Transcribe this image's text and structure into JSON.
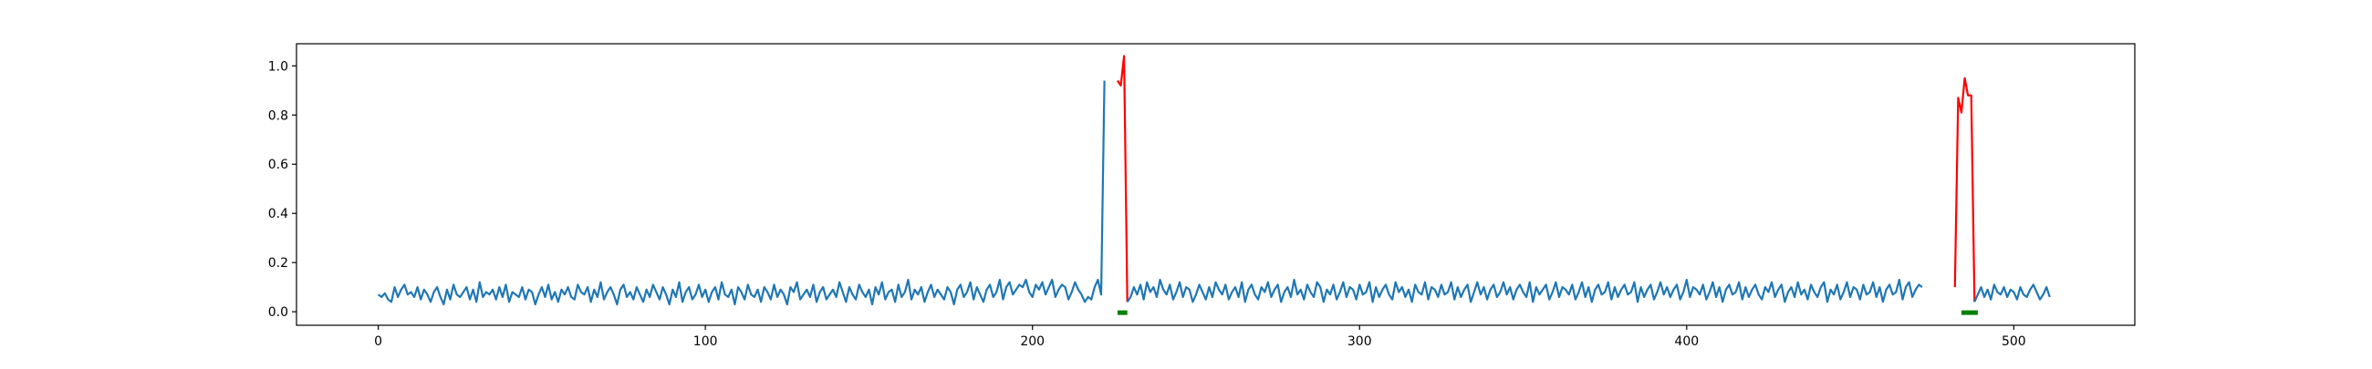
{
  "chart_data": {
    "type": "line",
    "title": "",
    "xlabel": "",
    "ylabel": "",
    "xlim": [
      -25,
      537
    ],
    "ylim": [
      -0.055,
      1.09
    ],
    "grid": false,
    "legend": "none",
    "xticks": [
      0,
      100,
      200,
      300,
      400,
      500
    ],
    "yticks": [
      0.0,
      0.2,
      0.4,
      0.6,
      0.8,
      1.0
    ],
    "xtick_labels": [
      "0",
      "100",
      "200",
      "300",
      "400",
      "500"
    ],
    "ytick_labels": [
      "0.0",
      "0.2",
      "0.4",
      "0.6",
      "0.8",
      "1.0"
    ],
    "colors": {
      "signal": "#1f77b4",
      "anomaly": "#ff0000",
      "markers": "#008000"
    },
    "series": [
      {
        "x_start": 0,
        "values": [
          0.07,
          0.06,
          0.075,
          0.05,
          0.04,
          0.1,
          0.06,
          0.09,
          0.11,
          0.07,
          0.08,
          0.06,
          0.1,
          0.05,
          0.09,
          0.07,
          0.04,
          0.08,
          0.1,
          0.06,
          0.03,
          0.09,
          0.05,
          0.11,
          0.07,
          0.06,
          0.08,
          0.1,
          0.05,
          0.09,
          0.04,
          0.12,
          0.06,
          0.08,
          0.07,
          0.09,
          0.05,
          0.1,
          0.06,
          0.11,
          0.04,
          0.08,
          0.07,
          0.06,
          0.1,
          0.05,
          0.09,
          0.08,
          0.03,
          0.07,
          0.1,
          0.06,
          0.11,
          0.05,
          0.08,
          0.04,
          0.09,
          0.07,
          0.1,
          0.06,
          0.05,
          0.11,
          0.08,
          0.07,
          0.1,
          0.04,
          0.09,
          0.06,
          0.12,
          0.05,
          0.08,
          0.1,
          0.07,
          0.03,
          0.09,
          0.11,
          0.06,
          0.08,
          0.05,
          0.1,
          0.07,
          0.04,
          0.09,
          0.06,
          0.11,
          0.08,
          0.05,
          0.1,
          0.07,
          0.03,
          0.09,
          0.06,
          0.12,
          0.04,
          0.08,
          0.1,
          0.05,
          0.07,
          0.11,
          0.06,
          0.09,
          0.04,
          0.08,
          0.1,
          0.05,
          0.12,
          0.07,
          0.06,
          0.09,
          0.03,
          0.1,
          0.08,
          0.05,
          0.11,
          0.07,
          0.06,
          0.09,
          0.04,
          0.1,
          0.08,
          0.05,
          0.11,
          0.06,
          0.09,
          0.07,
          0.03,
          0.1,
          0.08,
          0.12,
          0.05,
          0.07,
          0.09,
          0.06,
          0.11,
          0.04,
          0.08,
          0.1,
          0.05,
          0.07,
          0.09,
          0.06,
          0.12,
          0.08,
          0.04,
          0.1,
          0.07,
          0.05,
          0.11,
          0.08,
          0.06,
          0.09,
          0.03,
          0.1,
          0.07,
          0.12,
          0.05,
          0.08,
          0.09,
          0.04,
          0.11,
          0.06,
          0.08,
          0.13,
          0.05,
          0.09,
          0.07,
          0.1,
          0.04,
          0.08,
          0.11,
          0.06,
          0.09,
          0.07,
          0.05,
          0.1,
          0.08,
          0.03,
          0.09,
          0.11,
          0.06,
          0.08,
          0.12,
          0.05,
          0.1,
          0.07,
          0.04,
          0.09,
          0.11,
          0.06,
          0.08,
          0.13,
          0.05,
          0.1,
          0.12,
          0.07,
          0.09,
          0.11,
          0.1,
          0.13,
          0.08,
          0.06,
          0.11,
          0.09,
          0.12,
          0.07,
          0.1,
          0.13,
          0.06,
          0.09,
          0.11,
          0.1,
          0.05,
          0.08,
          0.12,
          0.09,
          0.07,
          0.04,
          0.06,
          0.05,
          0.1,
          0.13,
          0.07,
          0.94
        ],
        "color": "#1f77b4"
      },
      {
        "x_start": 226,
        "values": [
          0.94,
          0.92,
          1.04,
          0.04
        ],
        "color": "#ff0000"
      },
      {
        "x_start": 229,
        "values": [
          0.04,
          0.06,
          0.1,
          0.07,
          0.11,
          0.05,
          0.12,
          0.08,
          0.1,
          0.06,
          0.13,
          0.09,
          0.07,
          0.11,
          0.05,
          0.08,
          0.12,
          0.06,
          0.1,
          0.09,
          0.04,
          0.07,
          0.11,
          0.08,
          0.05,
          0.1,
          0.06,
          0.12,
          0.09,
          0.07,
          0.11,
          0.05,
          0.08,
          0.1,
          0.06,
          0.12,
          0.04,
          0.09,
          0.11,
          0.07,
          0.05,
          0.1,
          0.08,
          0.12,
          0.06,
          0.09,
          0.11,
          0.04,
          0.08,
          0.1,
          0.06,
          0.13,
          0.07,
          0.09,
          0.05,
          0.11,
          0.08,
          0.06,
          0.12,
          0.1,
          0.04,
          0.09,
          0.07,
          0.11,
          0.05,
          0.08,
          0.12,
          0.06,
          0.1,
          0.09,
          0.05,
          0.11,
          0.07,
          0.08,
          0.12,
          0.04,
          0.1,
          0.06,
          0.09,
          0.11,
          0.07,
          0.05,
          0.12,
          0.08,
          0.1,
          0.06,
          0.09,
          0.04,
          0.11,
          0.08,
          0.07,
          0.12,
          0.05,
          0.1,
          0.09,
          0.06,
          0.11,
          0.07,
          0.08,
          0.12,
          0.05,
          0.1,
          0.06,
          0.09,
          0.11,
          0.04,
          0.08,
          0.12,
          0.07,
          0.1,
          0.05,
          0.09,
          0.11,
          0.06,
          0.08,
          0.12,
          0.07,
          0.1,
          0.05,
          0.09,
          0.11,
          0.08,
          0.06,
          0.12,
          0.04,
          0.1,
          0.07,
          0.09,
          0.11,
          0.05,
          0.08,
          0.12,
          0.06,
          0.1,
          0.09,
          0.07,
          0.11,
          0.05,
          0.08,
          0.12,
          0.06,
          0.1,
          0.04,
          0.09,
          0.11,
          0.07,
          0.08,
          0.12,
          0.05,
          0.1,
          0.06,
          0.09,
          0.11,
          0.07,
          0.08,
          0.12,
          0.04,
          0.1,
          0.06,
          0.09,
          0.11,
          0.05,
          0.08,
          0.12,
          0.07,
          0.1,
          0.06,
          0.09,
          0.11,
          0.05,
          0.08,
          0.13,
          0.06,
          0.1,
          0.09,
          0.07,
          0.11,
          0.05,
          0.08,
          0.12,
          0.06,
          0.1,
          0.04,
          0.09,
          0.11,
          0.07,
          0.08,
          0.12,
          0.05,
          0.1,
          0.06,
          0.09,
          0.11,
          0.07,
          0.05,
          0.1,
          0.08,
          0.12,
          0.06,
          0.09,
          0.11,
          0.04,
          0.08,
          0.1,
          0.06,
          0.12,
          0.07,
          0.09,
          0.05,
          0.11,
          0.08,
          0.06,
          0.1,
          0.12,
          0.04,
          0.09,
          0.07,
          0.11,
          0.05,
          0.08,
          0.12,
          0.06,
          0.1,
          0.09,
          0.05,
          0.11,
          0.07,
          0.08,
          0.12,
          0.06,
          0.1,
          0.04,
          0.09,
          0.11,
          0.07,
          0.08,
          0.13,
          0.05,
          0.1,
          0.12,
          0.06,
          0.09,
          0.11,
          0.1
        ],
        "color": "#1f77b4"
      },
      {
        "x_start": 482,
        "values": [
          0.1,
          0.87,
          0.81,
          0.95,
          0.88,
          0.88,
          0.04
        ],
        "color": "#ff0000"
      },
      {
        "x_start": 488,
        "values": [
          0.04,
          0.07,
          0.1,
          0.06,
          0.09,
          0.05,
          0.11,
          0.08,
          0.07,
          0.1,
          0.06,
          0.09,
          0.08,
          0.05,
          0.1,
          0.07,
          0.06,
          0.09,
          0.11,
          0.08,
          0.05,
          0.07,
          0.1,
          0.06
        ],
        "color": "#1f77b4"
      }
    ],
    "markers": [
      {
        "x_start": 226,
        "x_end": 229,
        "y": 0.0
      },
      {
        "x_start": 484,
        "x_end": 489,
        "y": 0.0
      }
    ]
  }
}
